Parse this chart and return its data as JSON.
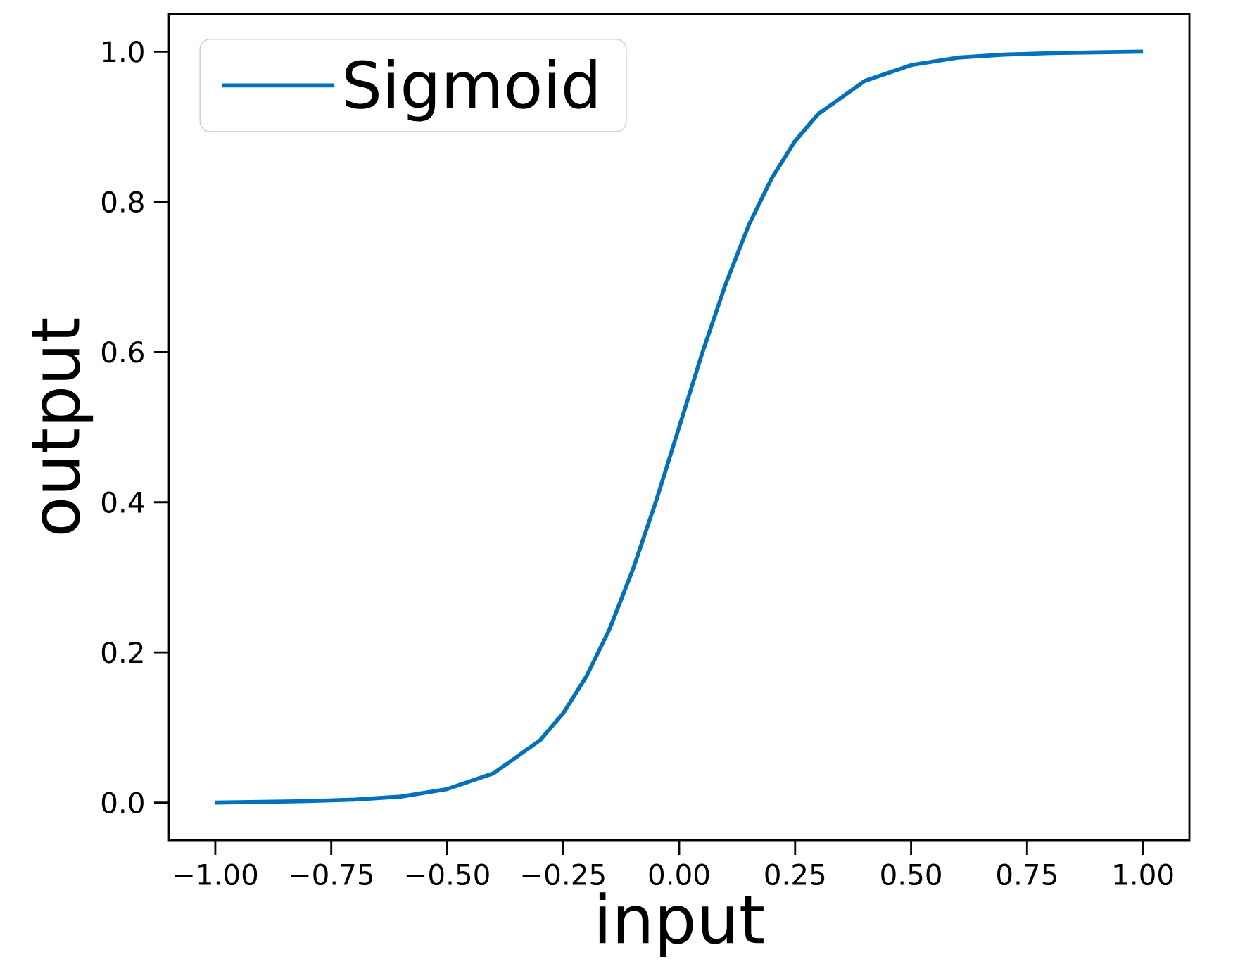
{
  "chart_data": {
    "type": "line",
    "xlabel": "input",
    "ylabel": "output",
    "x": [
      -1,
      -0.9,
      -0.8,
      -0.7,
      -0.6,
      -0.5,
      -0.4,
      -0.3,
      -0.25,
      -0.2,
      -0.15,
      -0.1,
      -0.05,
      0,
      0.05,
      0.1,
      0.15,
      0.2,
      0.25,
      0.3,
      0.4,
      0.5,
      0.6,
      0.7,
      0.8,
      0.9,
      1
    ],
    "series": [
      {
        "name": "Sigmoid",
        "color": "#0072bd",
        "values": [
          0.0,
          0.001,
          0.002,
          0.004,
          0.008,
          0.018,
          0.039,
          0.083,
          0.119,
          0.168,
          0.231,
          0.31,
          0.401,
          0.5,
          0.599,
          0.69,
          0.769,
          0.832,
          0.881,
          0.917,
          0.961,
          0.982,
          0.992,
          0.996,
          0.998,
          0.999,
          1.0
        ]
      }
    ],
    "xlim": [
      -1.1,
      1.1
    ],
    "ylim": [
      -0.05,
      1.05
    ],
    "xticks": [
      {
        "value": -1,
        "label": "−1.00"
      },
      {
        "value": -0.75,
        "label": "−0.75"
      },
      {
        "value": -0.5,
        "label": "−0.50"
      },
      {
        "value": -0.25,
        "label": "−0.25"
      },
      {
        "value": 0,
        "label": "0.00"
      },
      {
        "value": 0.25,
        "label": "0.25"
      },
      {
        "value": 0.5,
        "label": "0.50"
      },
      {
        "value": 0.75,
        "label": "0.75"
      },
      {
        "value": 1,
        "label": "1.00"
      }
    ],
    "yticks": [
      {
        "value": 0,
        "label": "0.0"
      },
      {
        "value": 0.2,
        "label": "0.2"
      },
      {
        "value": 0.4,
        "label": "0.4"
      },
      {
        "value": 0.6,
        "label": "0.6"
      },
      {
        "value": 0.8,
        "label": "0.8"
      },
      {
        "value": 1,
        "label": "1.0"
      }
    ],
    "grid": false,
    "legend": "top left",
    "marker": "none",
    "line_style": "solid"
  }
}
